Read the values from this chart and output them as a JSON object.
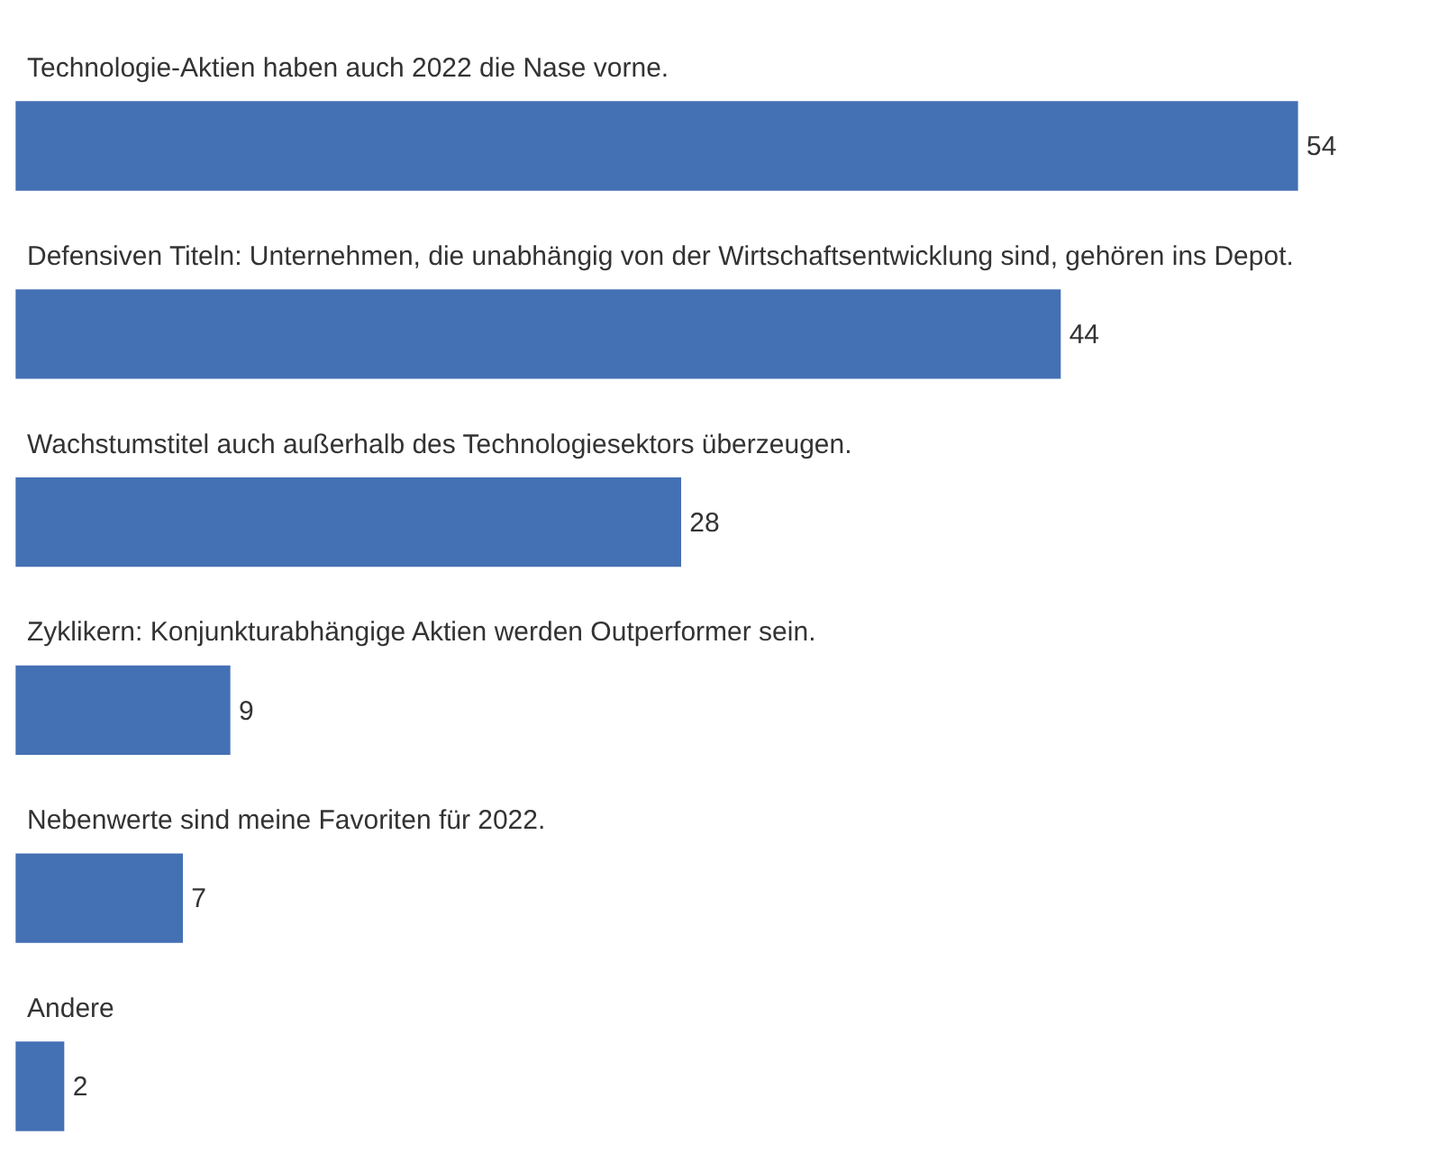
{
  "chart_data": {
    "type": "bar",
    "orientation": "horizontal",
    "categories": [
      "Technologie-Aktien haben auch 2022 die Nase vorne.",
      "Defensiven Titeln: Unternehmen, die unabhängig von der Wirtschaftsentwicklung sind, gehören ins Depot.",
      "Wachstumstitel auch außerhalb des Technologiesektors überzeugen.",
      "Zyklikern: Konjunkturabhängige Aktien werden Outperformer sein.",
      "Nebenwerte sind meine Favoriten für 2022.",
      "Andere"
    ],
    "values": [
      54,
      44,
      28,
      9,
      7,
      2
    ],
    "color": "#4470b4",
    "data_labels": true,
    "legend": false
  }
}
